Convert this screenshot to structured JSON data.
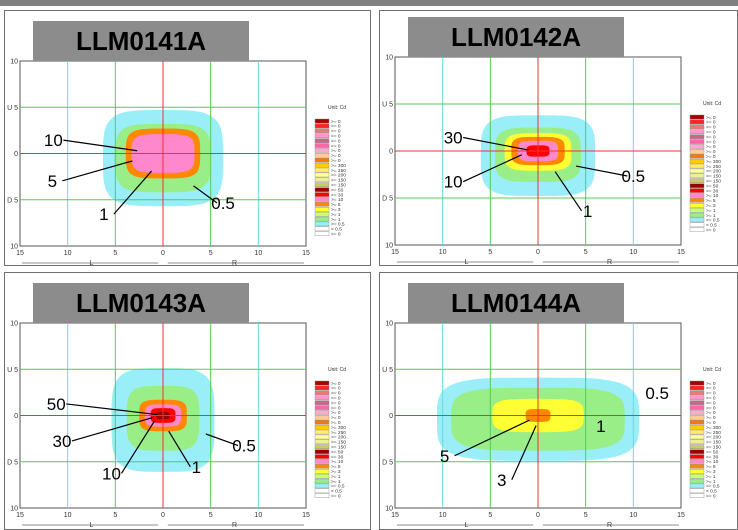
{
  "colors": {
    "grid_green": "#55cc55",
    "grid_cyan": "#66dddd",
    "axis_red": "#ee3333",
    "title_bg": "#8c8c8c",
    "band_0_5": "#99eef8",
    "band_1": "#99ee88",
    "band_3": "#ffff33",
    "band_5": "#ff8800",
    "band_10": "#ff88cc",
    "band_30": "#ff0000",
    "band_50": "#990000"
  },
  "legend": {
    "unit_label": "Unit: Cd",
    "entries": [
      ">= 0",
      ">= 0",
      ">= 0",
      ">= 0",
      ">= 0",
      ">= 0",
      ">= 0",
      ">= 0",
      ">= 0",
      ">= 300",
      ">= 250",
      ">= 200",
      ">= 150",
      ">= 150",
      ">= 50",
      ">= 30",
      ">= 10",
      ">= 5",
      ">= 3",
      ">= 1",
      ">= 1",
      ">= 0.5",
      "< 0.5",
      ">= 0"
    ],
    "swatches": [
      "#aa0000",
      "#ff2222",
      "#ee7777",
      "#ff99cc",
      "#cc6688",
      "#ff66aa",
      "#ffaacc",
      "#ffcc99",
      "#ff7700",
      "#ffcc00",
      "#ffee66",
      "#ffff99",
      "#eeee99",
      "#cccc66",
      "#990000",
      "#ff0000",
      "#ff88cc",
      "#ff8800",
      "#ffff33",
      "#ccff66",
      "#99ee88",
      "#99eef8",
      "#ffffff",
      "#ffffff"
    ]
  },
  "chart_data": [
    {
      "type": "heatmap",
      "title": "LLM0141A",
      "x_ticks": [
        "15",
        "10",
        "5",
        "0",
        "5",
        "10",
        "15"
      ],
      "y_ticks": [
        "10",
        "U 5",
        "0",
        "D 5",
        "10"
      ],
      "x_side_labels": [
        "L",
        "R"
      ],
      "xlim": [
        -15,
        15
      ],
      "ylim": [
        -10,
        10
      ],
      "contours": [
        {
          "level": 0.5,
          "half_width": 6.3,
          "half_height": 5.2,
          "center": [
            0,
            -0.5
          ]
        },
        {
          "level": 1,
          "half_width": 5.0,
          "half_height": 3.7,
          "center": [
            0,
            -0.5
          ]
        },
        {
          "level": 5,
          "half_width": 3.9,
          "half_height": 2.7,
          "center": [
            0,
            0
          ]
        },
        {
          "level": 10,
          "half_width": 3.3,
          "half_height": 2.1,
          "center": [
            0,
            0
          ]
        }
      ],
      "annotations": [
        {
          "text": "10",
          "tx": -11.5,
          "ty": 0.8,
          "px": -2.7,
          "py": 0.3
        },
        {
          "text": "5",
          "tx": -11.6,
          "ty": -3.6,
          "px": -3.2,
          "py": -0.8
        },
        {
          "text": "1",
          "tx": -6.2,
          "ty": -7.2,
          "px": -1.2,
          "py": -1.9
        },
        {
          "text": "0.5",
          "tx": 6.3,
          "ty": -6.0,
          "px": 3.2,
          "py": -3.5
        }
      ]
    },
    {
      "type": "heatmap",
      "title": "LLM0142A",
      "x_ticks": [
        "15",
        "10",
        "5",
        "0",
        "5",
        "10",
        "15"
      ],
      "y_ticks": [
        "10",
        "U 5",
        "0",
        "D 5",
        "10"
      ],
      "x_side_labels": [
        "L",
        "R"
      ],
      "xlim": [
        -15,
        15
      ],
      "ylim": [
        -10,
        10
      ],
      "contours": [
        {
          "level": 0.5,
          "half_width": 6.0,
          "half_height": 4.3,
          "center": [
            0,
            -0.5
          ]
        },
        {
          "level": 1,
          "half_width": 4.5,
          "half_height": 2.9,
          "center": [
            0,
            -0.4
          ]
        },
        {
          "level": 3,
          "half_width": 3.5,
          "half_height": 2.0,
          "center": [
            0,
            -0.1
          ]
        },
        {
          "level": 5,
          "half_width": 2.8,
          "half_height": 1.5,
          "center": [
            0,
            0
          ]
        },
        {
          "level": 10,
          "half_width": 2.1,
          "half_height": 1.1,
          "center": [
            0,
            0
          ]
        },
        {
          "level": 30,
          "half_width": 1.2,
          "half_height": 0.6,
          "center": [
            0,
            0
          ]
        }
      ],
      "annotations": [
        {
          "text": "30",
          "tx": -8.9,
          "ty": 0.8,
          "px": -1.0,
          "py": 0.1
        },
        {
          "text": "10",
          "tx": -8.9,
          "ty": -3.9,
          "px": -1.7,
          "py": -0.4
        },
        {
          "text": "0.5",
          "tx": 10.0,
          "ty": -3.3,
          "px": 4.0,
          "py": -1.6
        },
        {
          "text": "1",
          "tx": 5.2,
          "ty": -7.0,
          "px": 1.8,
          "py": -2.2
        }
      ]
    },
    {
      "type": "heatmap",
      "title": "LLM0143A",
      "x_ticks": [
        "15",
        "10",
        "5",
        "0",
        "5",
        "10",
        "15"
      ],
      "y_ticks": [
        "10",
        "U 5",
        "0",
        "D 5",
        "10"
      ],
      "x_side_labels": [
        "L",
        "R"
      ],
      "xlim": [
        -15,
        15
      ],
      "ylim": [
        -10,
        10
      ],
      "contours": [
        {
          "level": 0.5,
          "half_width": 5.4,
          "half_height": 5.6,
          "center": [
            0,
            -0.5
          ]
        },
        {
          "level": 1,
          "half_width": 3.8,
          "half_height": 3.5,
          "center": [
            0,
            -0.3
          ]
        },
        {
          "level": 5,
          "half_width": 2.5,
          "half_height": 1.7,
          "center": [
            0,
            0
          ]
        },
        {
          "level": 10,
          "half_width": 1.9,
          "half_height": 1.2,
          "center": [
            0,
            0
          ]
        },
        {
          "level": 30,
          "half_width": 1.3,
          "half_height": 0.8,
          "center": [
            0,
            0
          ]
        },
        {
          "level": 50,
          "half_width": 0.7,
          "half_height": 0.4,
          "center": [
            0,
            0
          ]
        }
      ],
      "annotations": [
        {
          "text": "50",
          "tx": -11.2,
          "ty": 0.6,
          "px": -0.6,
          "py": 0.1
        },
        {
          "text": "30",
          "tx": -10.6,
          "ty": -3.4,
          "px": -1.0,
          "py": -0.2
        },
        {
          "text": "10",
          "tx": -5.4,
          "ty": -6.9,
          "px": -0.9,
          "py": -0.6
        },
        {
          "text": "1",
          "tx": 3.5,
          "ty": -6.2,
          "px": 0.6,
          "py": -1.7
        },
        {
          "text": "0.5",
          "tx": 8.5,
          "ty": -3.9,
          "px": 4.5,
          "py": -2.0
        }
      ]
    },
    {
      "type": "heatmap",
      "title": "LLM0144A",
      "x_ticks": [
        "15",
        "10",
        "5",
        "0",
        "5",
        "10",
        "15"
      ],
      "y_ticks": [
        "10",
        "U 5",
        "0",
        "D 5",
        "10"
      ],
      "x_side_labels": [
        "L",
        "R"
      ],
      "xlim": [
        -15,
        15
      ],
      "ylim": [
        -10,
        10
      ],
      "contours": [
        {
          "level": 0.5,
          "half_width": 10.6,
          "half_height": 4.5,
          "center": [
            0,
            -0.4
          ]
        },
        {
          "level": 1,
          "half_width": 9.1,
          "half_height": 3.4,
          "center": [
            0,
            -0.4
          ]
        },
        {
          "level": 3,
          "half_width": 4.8,
          "half_height": 1.8,
          "center": [
            0,
            0
          ]
        },
        {
          "level": 5,
          "half_width": 1.3,
          "half_height": 0.7,
          "center": [
            0,
            0
          ]
        }
      ],
      "annotations": [
        {
          "text": "0.5",
          "tx": 12.5,
          "ty": 1.8
        },
        {
          "text": "1",
          "tx": 6.6,
          "ty": -1.8
        },
        {
          "text": "5",
          "tx": -9.8,
          "ty": -5.0,
          "px": -0.9,
          "py": -0.5
        },
        {
          "text": "3",
          "tx": -3.8,
          "ty": -7.6,
          "px": -0.2,
          "py": -1.1
        }
      ]
    }
  ]
}
